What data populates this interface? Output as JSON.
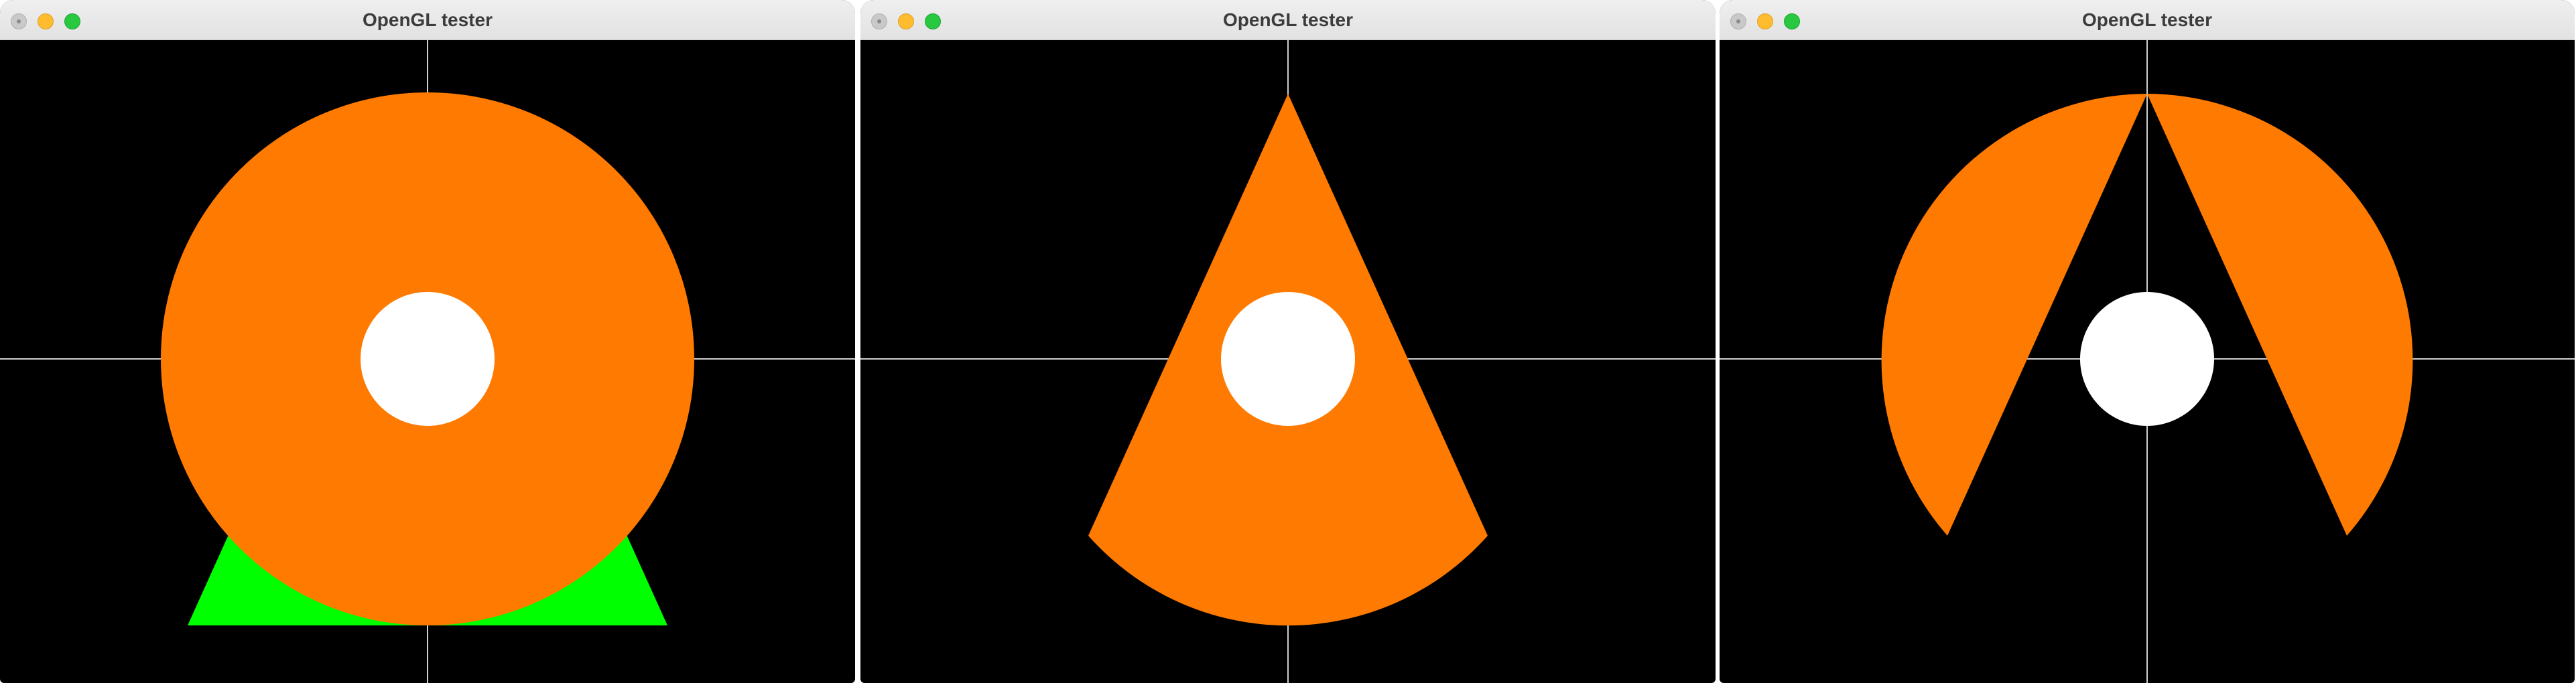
{
  "windows": [
    {
      "title": "OpenGL tester",
      "scene": "circle with triangle"
    },
    {
      "title": "OpenGL tester",
      "scene": "sector (cone)"
    },
    {
      "title": "OpenGL tester",
      "scene": "circle with sector removed"
    }
  ],
  "colors": {
    "background": "#000000",
    "axes": "#cfcfcf",
    "shape_fill": "#ff7a00",
    "triangle_fill": "#00ff00",
    "center_dot": "#ffffff"
  },
  "icons": {
    "close": "close-button-icon",
    "minimize": "minimize-button-icon",
    "maximize": "maximize-button-icon"
  }
}
